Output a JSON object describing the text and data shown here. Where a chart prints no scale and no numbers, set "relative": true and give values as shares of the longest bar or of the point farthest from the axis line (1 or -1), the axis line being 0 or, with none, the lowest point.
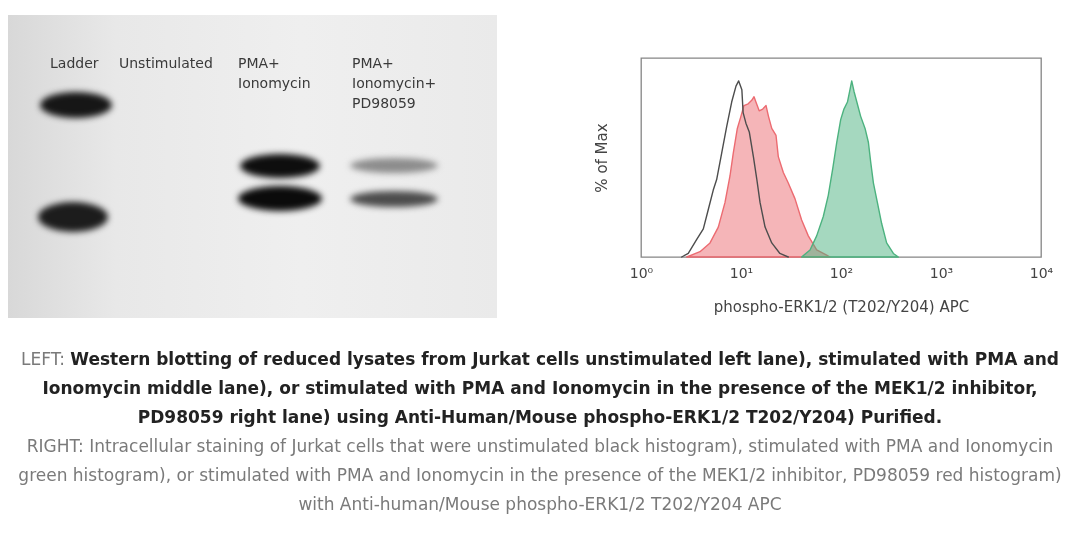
{
  "chart_data": [
    {
      "type": "other",
      "annotations": [
        "Ladder",
        "Unstimulated",
        "PMA+ Ionomycin",
        "PMA+ Ionomycin+ PD98059"
      ]
    },
    {
      "type": "area",
      "xlabel": "phospho-ERK1/2 (T202/Y204) APC",
      "ylabel": "% of Max",
      "log": "x",
      "relative": true,
      "xlim": [
        1,
        10000
      ],
      "xticks": [
        {
          "value": 1,
          "label": "10⁰"
        },
        {
          "value": 10,
          "label": "10¹"
        },
        {
          "value": 100,
          "label": "10²"
        },
        {
          "value": 1000,
          "label": "10³"
        },
        {
          "value": 10000,
          "label": "10⁴"
        }
      ],
      "series": [
        {
          "type": "area",
          "color": "#ec6b71",
          "x": [
            2.86,
            3.89,
            4.9,
            5.93,
            6.92,
            7.76,
            8.37,
            9.19,
            10,
            10.7,
            11.8,
            12.8,
            13.5,
            14.1,
            15.2,
            16.5,
            17.8,
            18.8,
            20.3,
            22.4,
            23.6,
            26.5,
            29.7,
            34.7,
            40.4,
            47.1,
            57.1,
            71.9,
            77.6
          ],
          "values": [
            0,
            0.03,
            0.08,
            0.17,
            0.31,
            0.46,
            0.59,
            0.73,
            0.8,
            0.86,
            0.87,
            0.89,
            0.91,
            0.88,
            0.83,
            0.84,
            0.86,
            0.8,
            0.73,
            0.69,
            0.57,
            0.48,
            0.42,
            0.33,
            0.21,
            0.12,
            0.04,
            0.01,
            0
          ]
        },
        {
          "type": "area",
          "color": "#4cb27f",
          "x": [
            40.4,
            49,
            57.1,
            66.5,
            74.6,
            82.6,
            90.6,
            99.3,
            107,
            116,
            123,
            128,
            135,
            144,
            157,
            174,
            188,
            198,
            211,
            231,
            255,
            286,
            334,
            374
          ],
          "values": [
            0,
            0.04,
            0.12,
            0.23,
            0.35,
            0.5,
            0.65,
            0.78,
            0.84,
            0.88,
            0.95,
            1,
            0.94,
            0.88,
            0.8,
            0.73,
            0.65,
            0.54,
            0.42,
            0.31,
            0.19,
            0.08,
            0.02,
            0
          ]
        },
        {
          "type": "line",
          "color": "#4d4d4d",
          "x": [
            2.55,
            2.97,
            3.61,
            4.2,
            4.71,
            5.28,
            5.71,
            6.41,
            7.19,
            8.07,
            8.91,
            9.48,
            10.2,
            10.5,
            11.2,
            12.1,
            13.3,
            14.4,
            15.5,
            17.4,
            20.3,
            24.5,
            29.7
          ],
          "values": [
            0,
            0.02,
            0.1,
            0.16,
            0.27,
            0.38,
            0.44,
            0.59,
            0.74,
            0.88,
            0.97,
            1,
            0.95,
            0.82,
            0.76,
            0.71,
            0.57,
            0.44,
            0.31,
            0.17,
            0.08,
            0.02,
            0
          ]
        }
      ]
    },
    {
      "type": "other",
      "annotations": [
        "LEFT: Western blotting of reduced lysates from Jurkat cells unstimulated left lane), stimulated with PMA and Ionomycin middle lane), or stimulated with PMA and Ionomycin in the presence of the MEK1/2 inhibitor, PD98059 right lane) using Anti-Human/Mouse phospho-ERK1/2 T202/Y204) Purified.",
        "RIGHT: Intracellular staining of Jurkat cells that were unstimulated black histogram), stimulated with PMA and Ionomycin green histogram), or stimulated with PMA and Ionomycin in the presence of the MEK1/2 inhibitor, PD98059 red histogram) with Anti-human/Mouse phospho-ERK1/2 T202/Y204 APC"
      ]
    }
  ]
}
